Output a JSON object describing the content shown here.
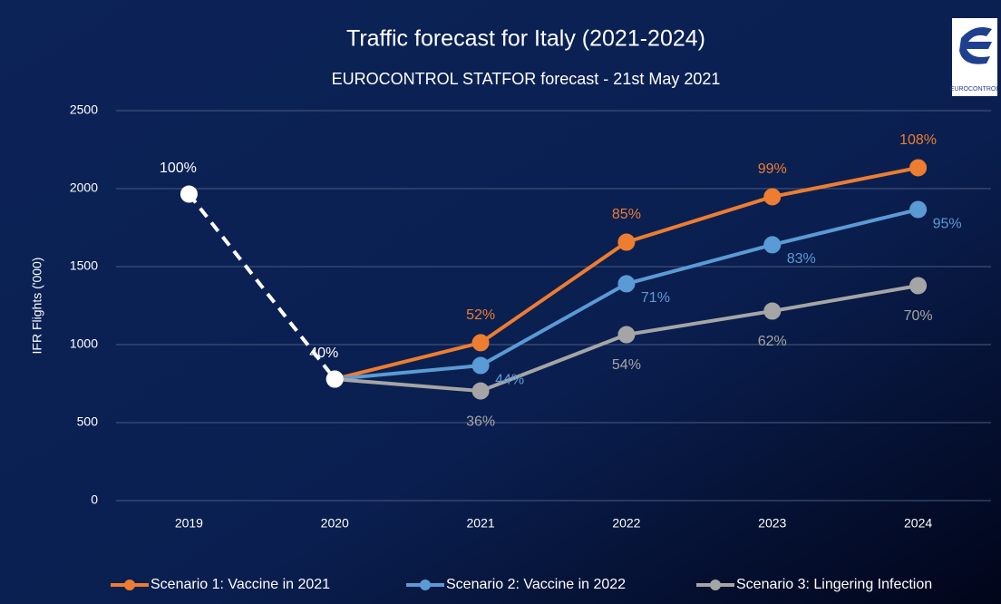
{
  "logo_text": "EUROCONTROL",
  "chart_data": {
    "type": "line",
    "title": "Traffic forecast for Italy (2021-2024)",
    "subtitle": "EUROCONTROL STATFOR forecast  - 21st May 2021",
    "y_label": "IFR Flights ('000)",
    "categories": [
      "2019",
      "2020",
      "2021",
      "2022",
      "2023",
      "2024"
    ],
    "ylim": [
      0,
      2500
    ],
    "yticks": [
      0,
      500,
      1000,
      1500,
      2000,
      2500
    ],
    "grid": true,
    "legend": "bottom",
    "series": [
      {
        "color": "#ffffff",
        "dashed": true,
        "values": [
          1965,
          779,
          null,
          null,
          null,
          null
        ],
        "value_labels": [
          "100%",
          "40%",
          null,
          null,
          null,
          null
        ]
      },
      {
        "name": "Scenario 1: Vaccine in 2021",
        "color": "#ed7d31",
        "values": [
          null,
          779,
          1012,
          1657,
          1948,
          2134
        ],
        "value_labels": [
          null,
          null,
          "52%",
          "85%",
          "99%",
          "108%"
        ]
      },
      {
        "name": "Scenario 2: Vaccine in 2022",
        "color": "#5b9bd5",
        "values": [
          null,
          779,
          866,
          1390,
          1640,
          1866
        ],
        "value_labels": [
          null,
          null,
          "44%",
          "71%",
          "83%",
          "95%"
        ]
      },
      {
        "name": "Scenario 3: Lingering Infection",
        "color": "#a5a5a5",
        "values": [
          null,
          779,
          703,
          1064,
          1215,
          1378
        ],
        "value_labels": [
          null,
          null,
          "36%",
          "54%",
          "62%",
          "70%"
        ]
      }
    ]
  }
}
